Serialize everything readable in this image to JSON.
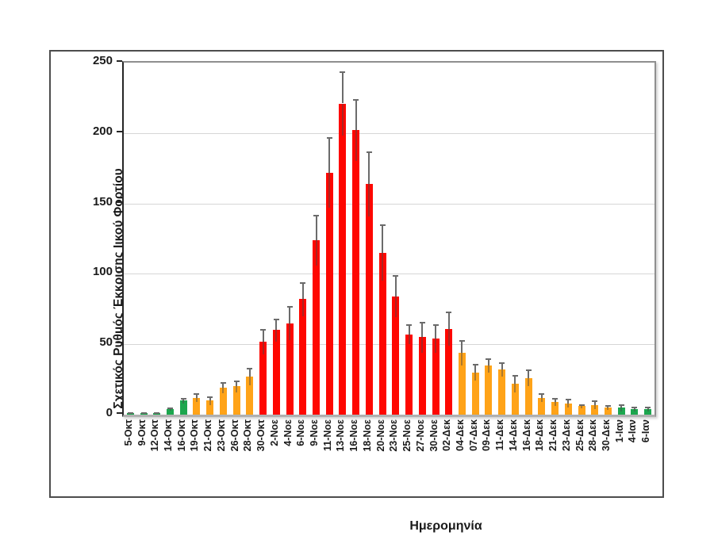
{
  "chart_data": {
    "type": "bar",
    "title": "",
    "xlabel": "Ημερομηνία",
    "ylabel": "Σχετικός Ρυθμός Έκκρισης Ιικού Φορτίου",
    "ylim": [
      0,
      250
    ],
    "yticks": [
      0,
      50,
      100,
      150,
      200,
      250
    ],
    "grid": true,
    "legend_position": "none",
    "error_bars": "plus",
    "categories": [
      "5-Οκτ",
      "9-Οκτ",
      "12-Οκτ",
      "14-Οκτ",
      "16-Οκτ",
      "19-Οκτ",
      "21-Οκτ",
      "23-Οκτ",
      "26-Οκτ",
      "28-Οκτ",
      "30-Οκτ",
      "2-Νοε",
      "4-Νοε",
      "6-Νοε",
      "9-Νοε",
      "11-Νοε",
      "13-Νοε",
      "16-Νοε",
      "18-Νοε",
      "20-Νοε",
      "23-Νοε",
      "25-Νοε",
      "27-Νοε",
      "30-Νοε",
      "02-Δεκ",
      "04-Δεκ",
      "07-Δεκ",
      "09-Δεκ",
      "11-Δεκ",
      "14-Δεκ",
      "16-Δεκ",
      "18-Δεκ",
      "21-Δεκ",
      "23-Δεκ",
      "25-Δεκ",
      "28-Δεκ",
      "30-Δεκ",
      "1-Ιαν",
      "4-Ιαν",
      "6-Ιαν"
    ],
    "values": [
      1,
      1,
      1,
      4,
      10,
      12,
      10,
      19,
      20,
      27,
      52,
      60,
      65,
      82,
      124,
      172,
      221,
      202,
      164,
      115,
      84,
      57,
      55,
      54,
      61,
      44,
      30,
      35,
      32,
      22,
      26,
      12,
      9,
      8,
      6,
      7,
      5,
      5,
      4,
      4
    ],
    "errors_plus": [
      0.5,
      0.5,
      0.5,
      1,
      2,
      3,
      3,
      4,
      4,
      6,
      9,
      8,
      12,
      12,
      18,
      25,
      23,
      22,
      23,
      20,
      15,
      7,
      11,
      10,
      12,
      9,
      6,
      5,
      5,
      6,
      6,
      3,
      3,
      3,
      1.5,
      3,
      1.5,
      2.5,
      1.5,
      1.5
    ],
    "bar_color_groups": [
      "green",
      "green",
      "green",
      "green",
      "green",
      "orange",
      "orange",
      "orange",
      "orange",
      "orange",
      "red",
      "red",
      "red",
      "red",
      "red",
      "red",
      "red",
      "red",
      "red",
      "red",
      "red",
      "red",
      "red",
      "red",
      "red",
      "orange",
      "orange",
      "orange",
      "orange",
      "orange",
      "orange",
      "orange",
      "orange",
      "orange",
      "orange",
      "orange",
      "orange",
      "green",
      "green",
      "green"
    ],
    "palette": {
      "green": "#1ca64e",
      "orange": "#ffa318",
      "red": "#fe0700"
    },
    "colors": {
      "error_bar": "#6b6b6b",
      "gridline": "#d6d6d6",
      "axis_left": "#262626",
      "plot_border": "#8f8f8f",
      "text": "#1a1a1a"
    }
  }
}
